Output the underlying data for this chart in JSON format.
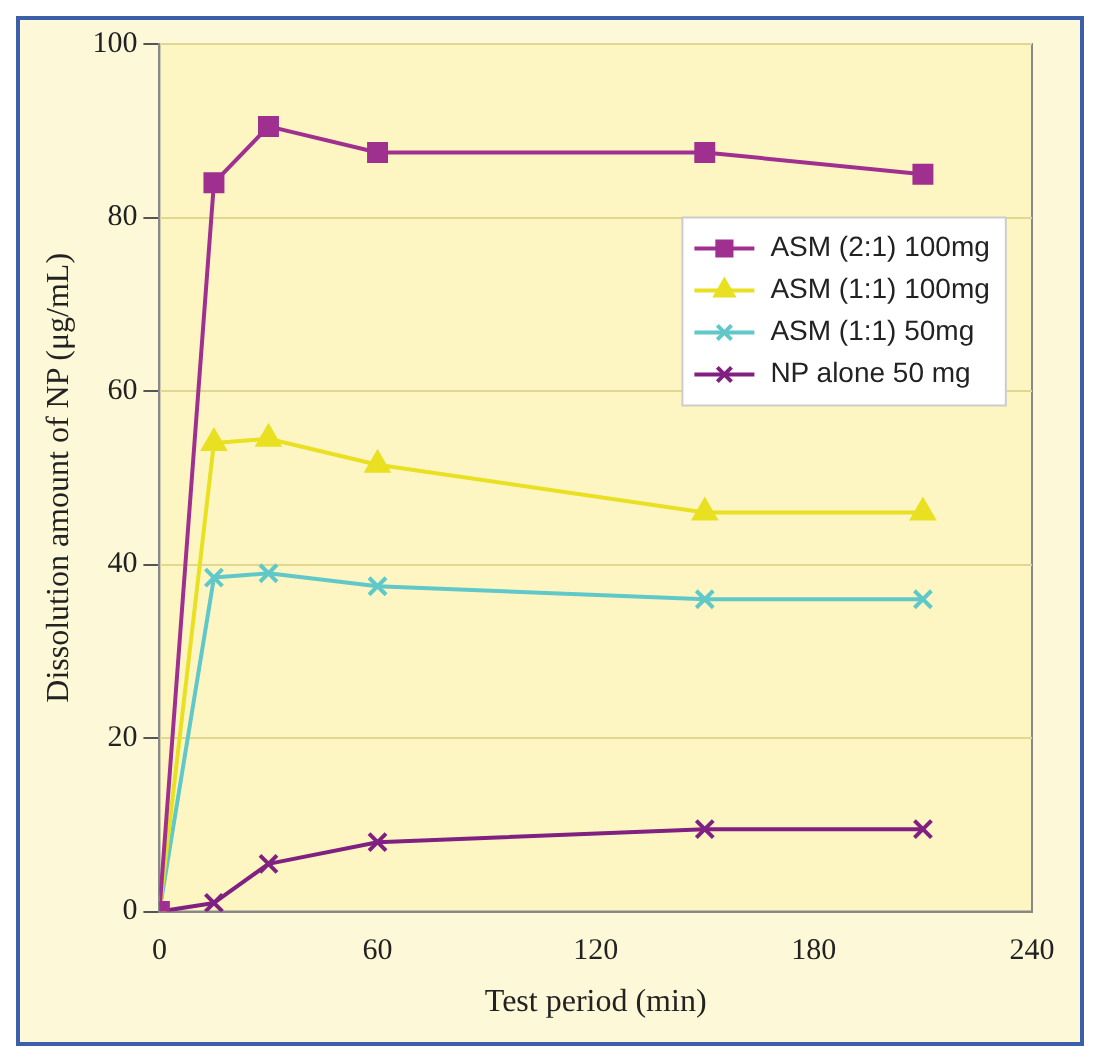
{
  "chart_data": {
    "type": "line",
    "xlabel": "Test period (min)",
    "ylabel": "Dissolution amount of NP (μg/mL)",
    "x": [
      0,
      15,
      30,
      60,
      150,
      210
    ],
    "series": [
      {
        "name": "ASM (2:1) 100mg",
        "color": "#a0308f",
        "marker": "square",
        "values": [
          0,
          84,
          90.5,
          87.5,
          87.5,
          85
        ]
      },
      {
        "name": "ASM (1:1) 100mg",
        "color": "#e8e020",
        "marker": "triangle",
        "values": [
          0,
          54,
          54.5,
          51.5,
          46,
          46
        ]
      },
      {
        "name": "ASM (1:1) 50mg",
        "color": "#60c8c8",
        "marker": "cross",
        "values": [
          0,
          38.5,
          39,
          37.5,
          36,
          36
        ]
      },
      {
        "name": "NP alone 50 mg",
        "color": "#802080",
        "marker": "cross",
        "values": [
          0,
          1,
          5.5,
          8,
          9.5,
          9.5
        ]
      }
    ],
    "xlim": [
      0,
      240
    ],
    "xticks": [
      0,
      60,
      120,
      180,
      240
    ],
    "ylim": [
      0,
      100
    ],
    "yticks": [
      0,
      20,
      40,
      60,
      80,
      100
    ],
    "grid": "y",
    "legend": "right",
    "line_style": "solid"
  }
}
